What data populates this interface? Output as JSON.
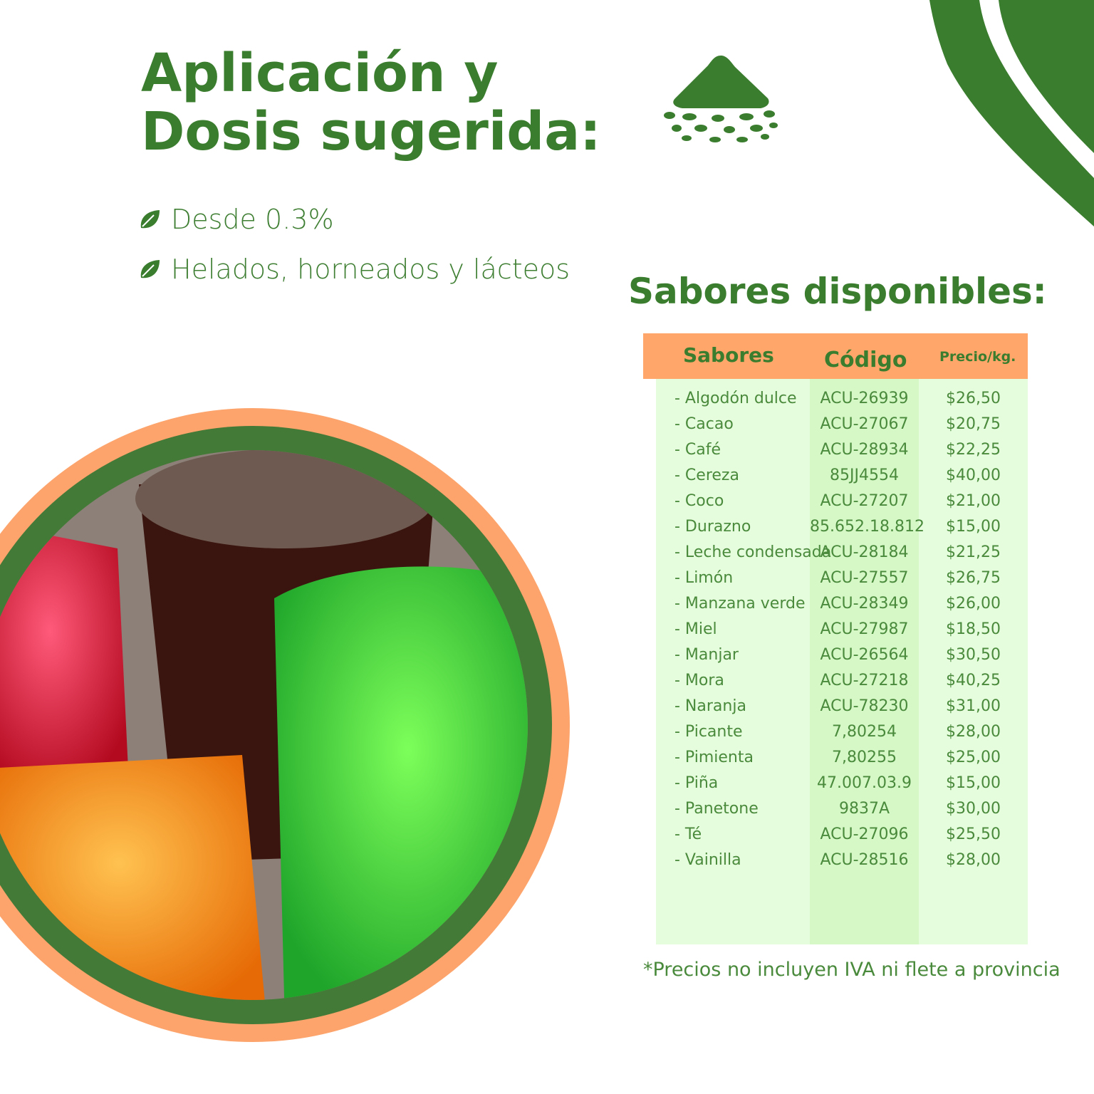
{
  "heading": {
    "line1": "Aplicación y",
    "line2": "Dosis sugerida:"
  },
  "bullets": [
    {
      "icon": "leaf-icon",
      "text": "Desde 0.3%"
    },
    {
      "icon": "leaf-icon",
      "text": "Helados, horneados y lácteos"
    }
  ],
  "flavors_title": "Sabores disponibles:",
  "table": {
    "headers": [
      "Sabores",
      "Código",
      "Precio/kg."
    ],
    "rows": [
      [
        "- Algodón dulce",
        "ACU-26939",
        "$26,50"
      ],
      [
        "- Cacao",
        "ACU-27067",
        "$20,75"
      ],
      [
        "- Café",
        "ACU-28934",
        "$22,25"
      ],
      [
        "- Cereza",
        "85JJ4554",
        "$40,00"
      ],
      [
        "- Coco",
        "ACU-27207",
        "$21,00"
      ],
      [
        "- Durazno",
        "85.652.18.812",
        "$15,00"
      ],
      [
        "- Leche condensada",
        "ACU-28184",
        "$21,25"
      ],
      [
        "- Limón",
        "ACU-27557",
        "$26,75"
      ],
      [
        "- Manzana verde",
        "ACU-28349",
        "$26,00"
      ],
      [
        "- Miel",
        "ACU-27987",
        "$18,50"
      ],
      [
        "- Manjar",
        "ACU-26564",
        "$30,50"
      ],
      [
        "- Mora",
        "ACU-27218",
        "$40,25"
      ],
      [
        "- Naranja",
        "ACU-78230",
        "$31,00"
      ],
      [
        "- Picante",
        "7,80254",
        "$28,00"
      ],
      [
        "- Pimienta",
        "7,80255",
        "$25,00"
      ],
      [
        "- Piña",
        "47.007.03.9",
        "$15,00"
      ],
      [
        "- Panetone",
        "9837A",
        "$30,00"
      ],
      [
        "- Té",
        "ACU-27096",
        "$25,50"
      ],
      [
        "- Vainilla",
        "ACU-28516",
        "$28,00"
      ]
    ]
  },
  "footnote": "*Precios no incluyen IVA ni flete a provincia",
  "colors": {
    "green": "#3B7D2E",
    "orange": "#FFA66B",
    "table_bg": "#E6FDDD",
    "code_col_bg": "#D5F8C6"
  }
}
